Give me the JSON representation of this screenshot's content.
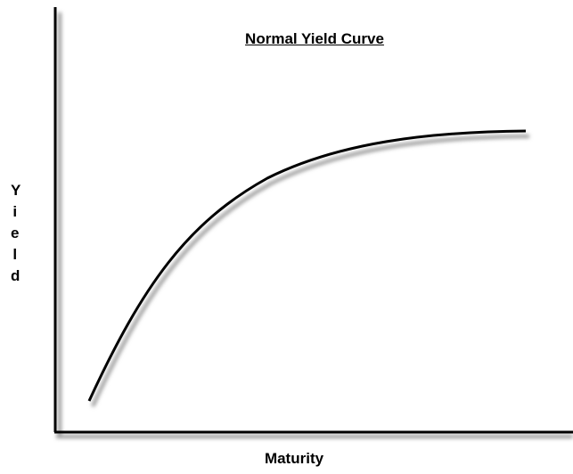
{
  "title": "Normal Yield Curve",
  "y_axis_label": "Yield",
  "x_axis_label": "Maturity"
}
